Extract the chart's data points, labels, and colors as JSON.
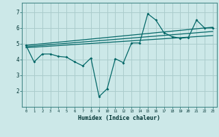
{
  "title": "",
  "xlabel": "Humidex (Indice chaleur)",
  "xlim": [
    -0.5,
    23.5
  ],
  "ylim": [
    1.0,
    7.6
  ],
  "yticks": [
    2,
    3,
    4,
    5,
    6,
    7
  ],
  "xticks": [
    0,
    1,
    2,
    3,
    4,
    5,
    6,
    7,
    8,
    9,
    10,
    11,
    12,
    13,
    14,
    15,
    16,
    17,
    18,
    19,
    20,
    21,
    22,
    23
  ],
  "bg_color": "#cce8e8",
  "grid_color": "#aacccc",
  "line_color": "#006666",
  "data_x": [
    0,
    1,
    2,
    3,
    4,
    5,
    6,
    7,
    8,
    9,
    10,
    11,
    12,
    13,
    14,
    15,
    16,
    17,
    18,
    19,
    20,
    21,
    22,
    23
  ],
  "data_y": [
    4.9,
    3.85,
    4.35,
    4.35,
    4.2,
    4.15,
    3.85,
    3.6,
    4.1,
    1.65,
    2.15,
    4.05,
    3.8,
    5.05,
    5.05,
    6.9,
    6.5,
    5.7,
    5.45,
    5.35,
    5.4,
    6.5,
    6.0,
    6.0
  ],
  "reg_lines": [
    [
      [
        0,
        23
      ],
      [
        4.9,
        6.05
      ]
    ],
    [
      [
        0,
        23
      ],
      [
        4.82,
        5.78
      ]
    ],
    [
      [
        0,
        23
      ],
      [
        4.75,
        5.52
      ]
    ]
  ]
}
